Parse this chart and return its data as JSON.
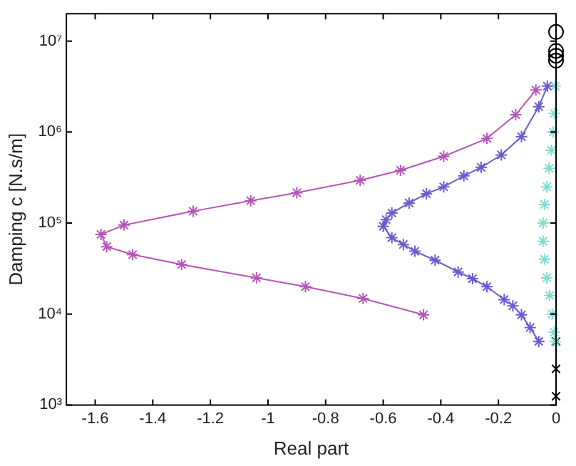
{
  "chart_data": {
    "type": "line",
    "xlabel": "Real part",
    "ylabel": "Damping c [N.s/m]",
    "log": "y",
    "grid": false,
    "legend": false,
    "xlim": [
      -1.7,
      0
    ],
    "xticks": [
      -1.6,
      -1.4,
      -1.2,
      -1,
      -0.8,
      -0.6,
      -0.4,
      -0.2,
      0
    ],
    "ylim": [
      1000,
      20000000
    ],
    "yticks": [
      {
        "value": 1000,
        "label": "10³"
      },
      {
        "value": 10000,
        "label": "10⁴"
      },
      {
        "value": 100000,
        "label": "10⁵"
      },
      {
        "value": 1000000,
        "label": "10⁶"
      },
      {
        "value": 10000000,
        "label": "10⁷"
      }
    ],
    "series": [
      {
        "marker": "cross",
        "color": "#b455b8",
        "x": [
          -0.07,
          -0.14,
          -0.24,
          -0.39,
          -0.54,
          -0.68,
          -0.9,
          -1.06,
          -1.26,
          -1.5,
          -1.58,
          -1.56,
          -1.47,
          -1.3,
          -1.04,
          -0.87,
          -0.67,
          -0.46
        ],
        "values": [
          2900000,
          1550000,
          850000,
          540000,
          380000,
          295000,
          215000,
          176000,
          135000,
          95000,
          75000,
          55000,
          45000,
          35000,
          25000,
          20000,
          14800,
          9800
        ]
      },
      {
        "marker": "cross",
        "color": "#6a5acd",
        "x": [
          -0.03,
          -0.06,
          -0.12,
          -0.19,
          -0.26,
          -0.32,
          -0.39,
          -0.45,
          -0.51,
          -0.57,
          -0.59,
          -0.6,
          -0.57,
          -0.53,
          -0.49,
          -0.42,
          -0.34,
          -0.29,
          -0.24,
          -0.18,
          -0.15,
          -0.12,
          -0.09,
          -0.06
        ],
        "values": [
          3200000,
          1900000,
          890000,
          560000,
          410000,
          330000,
          250000,
          210000,
          166000,
          129000,
          109000,
          92000,
          69000,
          58000,
          49000,
          39000,
          29000,
          24500,
          20000,
          14400,
          12300,
          9800,
          7100,
          5000
        ]
      },
      {
        "type": "scatter",
        "marker": "cross",
        "color": "#7fdcd0",
        "x": [
          -0.003,
          -0.006,
          -0.01,
          -0.016,
          -0.024,
          -0.032,
          -0.04,
          -0.045,
          -0.045,
          -0.04,
          -0.032,
          -0.022,
          -0.013,
          -0.006,
          -0.003
        ],
        "values": [
          3200000,
          1600000,
          1000000,
          630000,
          400000,
          250000,
          160000,
          100000,
          63000,
          40000,
          25000,
          16000,
          10000,
          6300,
          5000
        ]
      },
      {
        "type": "scatter",
        "marker": "circle",
        "color": "#000000",
        "x": [
          0,
          0,
          0,
          0
        ],
        "values": [
          12600000,
          7800000,
          6900000,
          6100000
        ]
      },
      {
        "type": "scatter",
        "marker": "cross",
        "color": "#000000",
        "x": [
          0,
          0,
          0
        ],
        "values": [
          5000,
          2500,
          1250
        ]
      }
    ]
  }
}
